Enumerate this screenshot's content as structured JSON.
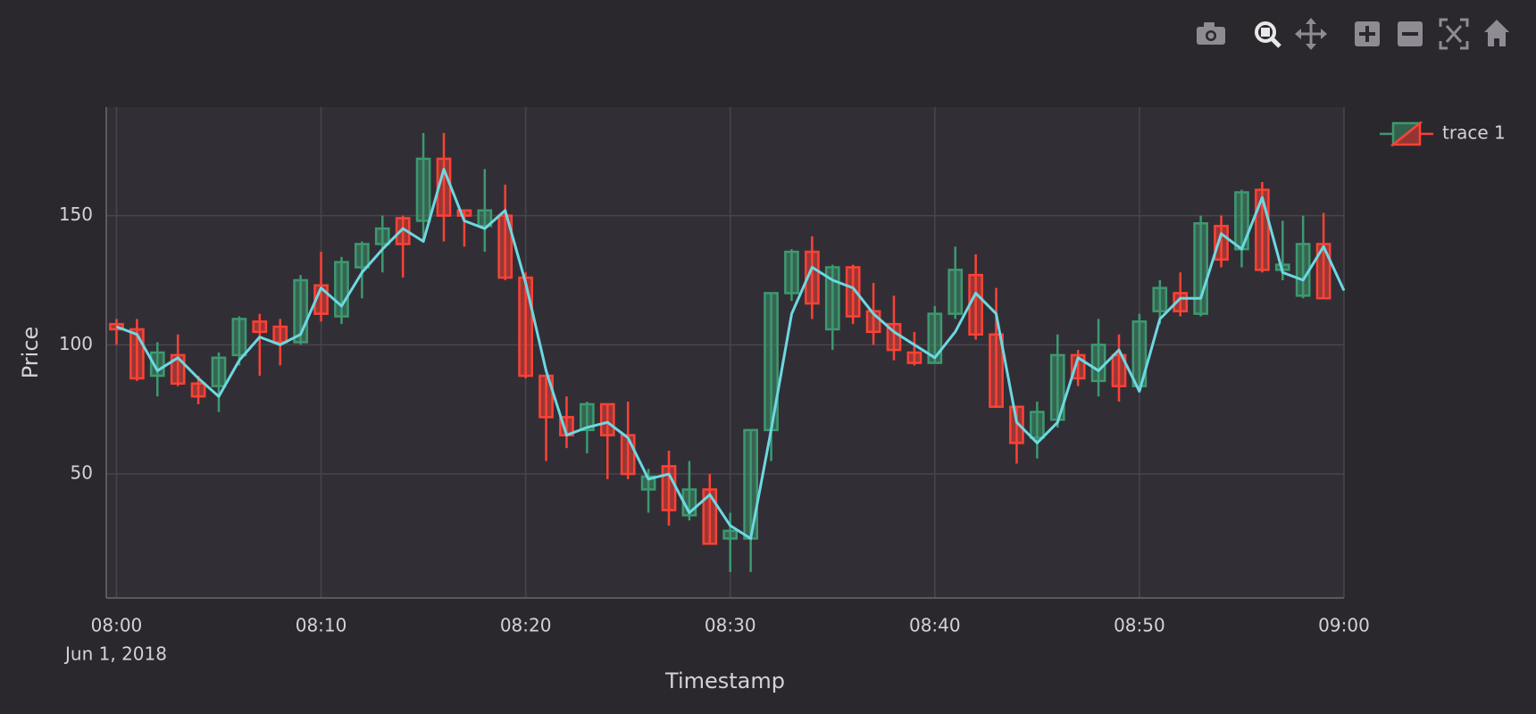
{
  "chart_data": {
    "type": "candlestick",
    "xlabel": "Timestamp",
    "ylabel": "Price",
    "x_date_label": "Jun 1, 2018",
    "grid": true,
    "legend": "top-right",
    "xlim": [
      "2018-06-01 07:59:30",
      "2018-06-01 09:00"
    ],
    "xticks": [
      {
        "value": "2018-06-01 08:00",
        "label": "08:00"
      },
      {
        "value": "2018-06-01 08:10",
        "label": "08:10"
      },
      {
        "value": "2018-06-01 08:20",
        "label": "08:20"
      },
      {
        "value": "2018-06-01 08:30",
        "label": "08:30"
      },
      {
        "value": "2018-06-01 08:40",
        "label": "08:40"
      },
      {
        "value": "2018-06-01 08:50",
        "label": "08:50"
      },
      {
        "value": "2018-06-01 09:00",
        "label": "09:00"
      }
    ],
    "ylim": [
      2,
      192
    ],
    "yticks": [
      50,
      100,
      150
    ],
    "x": [
      "2018-06-01 08:00",
      "2018-06-01 08:01",
      "2018-06-01 08:02",
      "2018-06-01 08:03",
      "2018-06-01 08:04",
      "2018-06-01 08:05",
      "2018-06-01 08:06",
      "2018-06-01 08:07",
      "2018-06-01 08:08",
      "2018-06-01 08:09",
      "2018-06-01 08:10",
      "2018-06-01 08:11",
      "2018-06-01 08:12",
      "2018-06-01 08:13",
      "2018-06-01 08:14",
      "2018-06-01 08:15",
      "2018-06-01 08:16",
      "2018-06-01 08:17",
      "2018-06-01 08:18",
      "2018-06-01 08:19",
      "2018-06-01 08:20",
      "2018-06-01 08:21",
      "2018-06-01 08:22",
      "2018-06-01 08:23",
      "2018-06-01 08:24",
      "2018-06-01 08:25",
      "2018-06-01 08:26",
      "2018-06-01 08:27",
      "2018-06-01 08:28",
      "2018-06-01 08:29",
      "2018-06-01 08:30",
      "2018-06-01 08:31",
      "2018-06-01 08:32",
      "2018-06-01 08:33",
      "2018-06-01 08:34",
      "2018-06-01 08:35",
      "2018-06-01 08:36",
      "2018-06-01 08:37",
      "2018-06-01 08:38",
      "2018-06-01 08:39",
      "2018-06-01 08:40",
      "2018-06-01 08:41",
      "2018-06-01 08:42",
      "2018-06-01 08:43",
      "2018-06-01 08:44",
      "2018-06-01 08:45",
      "2018-06-01 08:46",
      "2018-06-01 08:47",
      "2018-06-01 08:48",
      "2018-06-01 08:49",
      "2018-06-01 08:50",
      "2018-06-01 08:51",
      "2018-06-01 08:52",
      "2018-06-01 08:53",
      "2018-06-01 08:54",
      "2018-06-01 08:55",
      "2018-06-01 08:56",
      "2018-06-01 08:57",
      "2018-06-01 08:58",
      "2018-06-01 08:59"
    ],
    "series": [
      {
        "name": "trace 1",
        "type": "candlestick",
        "increasing_color": "#3d9970",
        "decreasing_color": "#ff4136",
        "open": [
          108,
          106,
          88,
          96,
          85,
          84,
          96,
          109,
          107,
          101,
          123,
          111,
          130,
          139,
          149,
          148,
          172,
          152,
          146,
          150,
          126,
          88,
          72,
          67,
          77,
          65,
          44,
          53,
          34,
          44,
          25,
          25,
          67,
          120,
          136,
          106,
          130,
          113,
          108,
          97,
          93,
          112,
          127,
          104,
          76,
          64,
          71,
          96,
          86,
          96,
          84,
          113,
          120,
          112,
          146,
          137,
          160,
          129,
          119,
          139
        ],
        "high": [
          110,
          110,
          101,
          104,
          88,
          97,
          111,
          112,
          110,
          127,
          136,
          134,
          140,
          150,
          150,
          182,
          182,
          152,
          168,
          162,
          128,
          88,
          80,
          78,
          77,
          78,
          52,
          59,
          55,
          50,
          35,
          67,
          120,
          137,
          142,
          131,
          131,
          124,
          119,
          105,
          115,
          138,
          135,
          122,
          76,
          78,
          104,
          98,
          110,
          104,
          112,
          125,
          128,
          150,
          150,
          160,
          163,
          148,
          150,
          151
        ],
        "low": [
          100,
          86,
          80,
          84,
          77,
          74,
          92,
          88,
          92,
          100,
          109,
          108,
          118,
          128,
          126,
          140,
          140,
          138,
          136,
          125,
          87,
          55,
          60,
          58,
          48,
          48,
          35,
          30,
          32,
          23,
          12,
          12,
          55,
          117,
          110,
          98,
          108,
          100,
          94,
          92,
          93,
          110,
          102,
          76,
          54,
          56,
          68,
          84,
          80,
          78,
          82,
          108,
          111,
          111,
          130,
          130,
          128,
          125,
          118,
          118
        ],
        "close": [
          106,
          87,
          97,
          85,
          80,
          95,
          110,
          105,
          101,
          125,
          112,
          132,
          139,
          145,
          139,
          172,
          150,
          150,
          152,
          126,
          88,
          72,
          65,
          77,
          65,
          50,
          49,
          36,
          44,
          23,
          28,
          67,
          120,
          136,
          116,
          130,
          111,
          105,
          98,
          93,
          112,
          129,
          104,
          76,
          62,
          74,
          96,
          87,
          100,
          84,
          109,
          122,
          113,
          147,
          133,
          159,
          129,
          131,
          139,
          118
        ]
      },
      {
        "type": "line",
        "color": "#6dd8e2",
        "x": [
          "2018-06-01 08:00",
          "2018-06-01 08:01",
          "2018-06-01 08:02",
          "2018-06-01 08:03",
          "2018-06-01 08:04",
          "2018-06-01 08:05",
          "2018-06-01 08:06",
          "2018-06-01 08:07",
          "2018-06-01 08:08",
          "2018-06-01 08:09",
          "2018-06-01 08:10",
          "2018-06-01 08:11",
          "2018-06-01 08:12",
          "2018-06-01 08:13",
          "2018-06-01 08:14",
          "2018-06-01 08:15",
          "2018-06-01 08:16",
          "2018-06-01 08:17",
          "2018-06-01 08:18",
          "2018-06-01 08:19",
          "2018-06-01 08:20",
          "2018-06-01 08:21",
          "2018-06-01 08:22",
          "2018-06-01 08:23",
          "2018-06-01 08:24",
          "2018-06-01 08:25",
          "2018-06-01 08:26",
          "2018-06-01 08:27",
          "2018-06-01 08:28",
          "2018-06-01 08:29",
          "2018-06-01 08:30",
          "2018-06-01 08:31",
          "2018-06-01 08:32",
          "2018-06-01 08:33",
          "2018-06-01 08:34",
          "2018-06-01 08:35",
          "2018-06-01 08:36",
          "2018-06-01 08:37",
          "2018-06-01 08:38",
          "2018-06-01 08:39",
          "2018-06-01 08:40",
          "2018-06-01 08:41",
          "2018-06-01 08:42",
          "2018-06-01 08:43",
          "2018-06-01 08:44",
          "2018-06-01 08:45",
          "2018-06-01 08:46",
          "2018-06-01 08:47",
          "2018-06-01 08:48",
          "2018-06-01 08:49",
          "2018-06-01 08:50",
          "2018-06-01 08:51",
          "2018-06-01 08:52",
          "2018-06-01 08:53",
          "2018-06-01 08:54",
          "2018-06-01 08:55",
          "2018-06-01 08:56",
          "2018-06-01 08:57",
          "2018-06-01 08:58",
          "2018-06-01 08:59",
          "2018-06-01 09:00"
        ],
        "values": [
          107,
          104,
          90,
          95,
          87,
          80,
          94,
          103,
          100,
          104,
          122,
          115,
          128,
          137,
          145,
          140,
          168,
          148,
          145,
          152,
          124,
          90,
          65,
          68,
          70,
          64,
          48,
          50,
          35,
          42,
          30,
          25,
          67,
          112,
          130,
          125,
          122,
          112,
          105,
          100,
          95,
          105,
          120,
          112,
          70,
          62,
          70,
          95,
          90,
          98,
          82,
          110,
          118,
          118,
          143,
          137,
          157,
          128,
          125,
          138,
          121
        ]
      }
    ]
  }
}
